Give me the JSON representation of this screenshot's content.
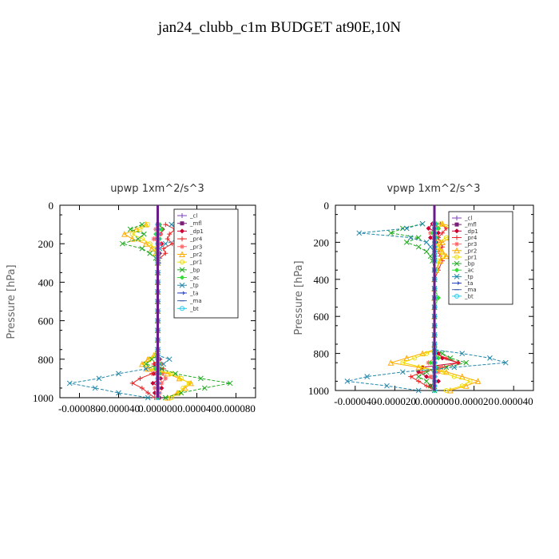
{
  "page": {
    "title": "jan24_clubb_c1m  BUDGET at90E,10N"
  },
  "chart_data": [
    {
      "type": "line",
      "title": "upwp   1xm^2/s^3",
      "ylabel": "Pressure  [hPa]",
      "xlabel": "",
      "xlim": [
        -0.0001,
        0.0001
      ],
      "ylim": [
        1000,
        0
      ],
      "x_ticks": [
        "-0.000080",
        "-0.000040",
        "0.000000",
        "0.000040",
        "0.000080"
      ],
      "x_tick_values": [
        -8e-05,
        -4e-05,
        0,
        4e-05,
        8e-05
      ],
      "y_ticks": [
        "0",
        "200",
        "400",
        "600",
        "800",
        "1000"
      ],
      "y_tick_values": [
        0,
        200,
        400,
        600,
        800,
        1000
      ],
      "legend": "top-right",
      "levels": [
        100,
        125,
        150,
        175,
        200,
        225,
        250,
        275,
        300,
        350,
        400,
        450,
        500,
        550,
        600,
        650,
        700,
        750,
        780,
        800,
        825,
        850,
        875,
        900,
        925,
        950,
        975,
        1000
      ],
      "series": [
        {
          "name": "_cl",
          "color": "#7f3fbf",
          "marker": "plus",
          "x": [
            0,
            0,
            0,
            0,
            0,
            0,
            0,
            0,
            0,
            0,
            0,
            0,
            0,
            0,
            0,
            0,
            0,
            0,
            0,
            0,
            0,
            0,
            0,
            0,
            0,
            0,
            0,
            0
          ]
        },
        {
          "name": "_mfl",
          "color": "#7b1f7b",
          "marker": "square",
          "x": [
            0,
            0,
            0,
            0,
            0,
            0,
            0,
            0,
            0,
            0,
            0,
            0,
            0,
            0,
            0,
            0,
            0,
            0,
            0,
            0,
            0,
            0,
            0,
            0,
            0,
            0,
            0,
            0
          ]
        },
        {
          "name": "_dp1",
          "color": "#cc0033",
          "marker": "diamond",
          "x": [
            2e-06,
            5e-06,
            3e-06,
            -2e-06,
            4e-06,
            -1e-06,
            2e-06,
            0,
            1e-06,
            0,
            0,
            0,
            0,
            0,
            0,
            0,
            0,
            0,
            0,
            2e-06,
            -3e-06,
            2e-06,
            -4e-06,
            3e-06,
            -5e-06,
            4e-06,
            -3e-06,
            2e-06
          ]
        },
        {
          "name": "_pr4",
          "color": "#ee2222",
          "marker": "plus",
          "x": [
            8e-06,
            1.8e-05,
            1.2e-05,
            1e-05,
            1.5e-05,
            6e-06,
            8e-06,
            2e-06,
            1e-06,
            0,
            0,
            0,
            0,
            0,
            0,
            0,
            0,
            0,
            0,
            2e-06,
            -4e-06,
            6e-06,
            -6e-06,
            -1.8e-05,
            -2.6e-05,
            -1.6e-05,
            -1e-05,
            -3e-06
          ]
        },
        {
          "name": "_pr3",
          "color": "#ff6666",
          "marker": "star",
          "x": [
            0,
            -2e-06,
            3e-06,
            -4e-06,
            2e-06,
            0,
            0,
            0,
            0,
            0,
            0,
            0,
            0,
            0,
            0,
            0,
            0,
            0,
            0,
            0,
            4e-06,
            -3e-06,
            5e-06,
            8e-06,
            4e-06,
            -3e-06,
            2e-06,
            0
          ]
        },
        {
          "name": "_pr2",
          "color": "#ffaa00",
          "marker": "triangle",
          "x": [
            -1.2e-05,
            -2.2e-05,
            -3.4e-05,
            -2.6e-05,
            -1.2e-05,
            -6e-06,
            -2e-06,
            0,
            0,
            0,
            0,
            0,
            0,
            0,
            0,
            0,
            0,
            0,
            -4e-06,
            -1e-05,
            -1.6e-05,
            -1e-05,
            1e-05,
            2.2e-05,
            3.4e-05,
            2.8e-05,
            2e-05,
            1e-05
          ]
        },
        {
          "name": "_pr1",
          "color": "#eedd00",
          "marker": "circle",
          "x": [
            -1e-05,
            -1.8e-05,
            -2.6e-05,
            -1.6e-05,
            -8e-06,
            -3e-06,
            -1e-06,
            0,
            0,
            0,
            0,
            0,
            0,
            0,
            0,
            0,
            0,
            0,
            -3e-06,
            -8e-06,
            -1.2e-05,
            -6e-06,
            1.4e-05,
            2.4e-05,
            3.2e-05,
            2.6e-05,
            2.2e-05,
            1.4e-05
          ]
        },
        {
          "name": "_bp",
          "color": "#22aa22",
          "marker": "x",
          "x": [
            -1.6e-05,
            -2.8e-05,
            -1.4e-05,
            -2e-05,
            -3.6e-05,
            -1.6e-05,
            -8e-06,
            -2e-06,
            0,
            0,
            0,
            0,
            0,
            0,
            0,
            0,
            0,
            0,
            0,
            -6e-06,
            -1.2e-05,
            4e-06,
            1.8e-05,
            4.4e-05,
            7.4e-05,
            4.8e-05,
            2.4e-05,
            8e-06
          ]
        },
        {
          "name": "_ac",
          "color": "#33dd33",
          "marker": "diamond",
          "x": [
            2e-06,
            4e-06,
            -2e-06,
            2e-06,
            0,
            0,
            0,
            0,
            0,
            0,
            0,
            0,
            0,
            0,
            0,
            0,
            0,
            0,
            0,
            0,
            2e-06,
            -2e-06,
            2e-06,
            0,
            0,
            0,
            0,
            0
          ]
        },
        {
          "name": "_tp",
          "color": "#2288aa",
          "marker": "x",
          "x": [
            1.4e-05,
            2.8e-05,
            4.2e-05,
            2.2e-05,
            8e-06,
            2e-06,
            0,
            0,
            0,
            0,
            0,
            0,
            0,
            0,
            0,
            0,
            0,
            0,
            0,
            1.2e-05,
            6e-06,
            -1.2e-05,
            -4e-05,
            -6e-05,
            -9e-05,
            -6.4e-05,
            -4e-05,
            -1e-05
          ]
        },
        {
          "name": "_ta",
          "color": "#2244cc",
          "marker": "arrow",
          "x": [
            0,
            0,
            0,
            0,
            0,
            0,
            0,
            0,
            0,
            0,
            0,
            0,
            0,
            0,
            0,
            0,
            0,
            0,
            0,
            0,
            0,
            0,
            0,
            0,
            0,
            0,
            0,
            0
          ]
        },
        {
          "name": "_ma",
          "color": "#4466aa",
          "marker": "dash",
          "x": [
            0,
            0,
            0,
            0,
            0,
            0,
            0,
            0,
            0,
            0,
            0,
            0,
            0,
            0,
            0,
            0,
            0,
            0,
            0,
            0,
            0,
            0,
            0,
            0,
            0,
            0,
            0,
            0
          ]
        },
        {
          "name": "_bt",
          "color": "#22ccee",
          "marker": "circle",
          "x": [
            0,
            0,
            0,
            0,
            0,
            0,
            0,
            0,
            0,
            0,
            0,
            0,
            0,
            0,
            0,
            0,
            0,
            0,
            0,
            0,
            0,
            0,
            0,
            0,
            0,
            0,
            0,
            0
          ]
        }
      ]
    },
    {
      "type": "line",
      "title": "vpwp   1xm^2/s^3",
      "ylabel": "Pressure  [hPa]",
      "xlabel": "",
      "xlim": [
        -5e-05,
        5e-05
      ],
      "ylim": [
        1000,
        0
      ],
      "x_ticks": [
        "-0.000040",
        "-0.000020",
        "0.000000",
        "0.000020",
        "0.000040"
      ],
      "x_tick_values": [
        -4e-05,
        -2e-05,
        0,
        2e-05,
        4e-05
      ],
      "y_ticks": [
        "0",
        "200",
        "400",
        "600",
        "800",
        "1000"
      ],
      "y_tick_values": [
        0,
        200,
        400,
        600,
        800,
        1000
      ],
      "legend": "top-right",
      "levels": [
        100,
        125,
        150,
        175,
        200,
        225,
        250,
        275,
        300,
        350,
        400,
        450,
        500,
        550,
        600,
        650,
        700,
        750,
        780,
        800,
        825,
        850,
        875,
        900,
        925,
        950,
        975,
        1000
      ],
      "series": [
        {
          "name": "_cl",
          "color": "#7f3fbf",
          "marker": "plus",
          "x": [
            0,
            0,
            0,
            0,
            0,
            0,
            0,
            0,
            0,
            0,
            0,
            0,
            0,
            0,
            0,
            0,
            0,
            0,
            0,
            0,
            0,
            0,
            0,
            0,
            0,
            0,
            0,
            0
          ]
        },
        {
          "name": "_mfl",
          "color": "#7b1f7b",
          "marker": "square",
          "x": [
            0,
            0,
            0,
            0,
            0,
            0,
            0,
            0,
            0,
            0,
            0,
            0,
            0,
            0,
            0,
            0,
            0,
            0,
            0,
            0,
            0,
            0,
            0,
            0,
            0,
            0,
            0,
            0
          ]
        },
        {
          "name": "_dp1",
          "color": "#cc0033",
          "marker": "diamond",
          "x": [
            -1e-06,
            -3e-06,
            2e-06,
            -2e-06,
            1e-06,
            0,
            0,
            0,
            0,
            0,
            0,
            0,
            0,
            0,
            0,
            0,
            0,
            0,
            0,
            2e-06,
            4e-06,
            1.2e-05,
            -6e-06,
            -8e-06,
            -4e-06,
            2e-06,
            -2e-06,
            0
          ]
        },
        {
          "name": "_pr4",
          "color": "#ee2222",
          "marker": "plus",
          "x": [
            3e-06,
            6e-06,
            4e-06,
            2e-06,
            3e-06,
            4e-06,
            2e-06,
            3e-06,
            4e-06,
            2e-06,
            0,
            0,
            0,
            0,
            0,
            0,
            0,
            0,
            0,
            0,
            6e-06,
            1.2e-05,
            4e-06,
            -6e-06,
            -1.2e-05,
            -8e-06,
            -4e-06,
            0
          ]
        },
        {
          "name": "_pr3",
          "color": "#ff6666",
          "marker": "star",
          "x": [
            0,
            2e-06,
            -2e-06,
            1e-06,
            0,
            0,
            0,
            0,
            0,
            0,
            0,
            0,
            0,
            0,
            0,
            0,
            0,
            0,
            0,
            0,
            0,
            -3e-06,
            3e-06,
            2e-06,
            -2e-06,
            0,
            0,
            0
          ]
        },
        {
          "name": "_pr2",
          "color": "#ffaa00",
          "marker": "triangle",
          "x": [
            4e-06,
            1.2e-05,
            1.8e-05,
            8e-06,
            4e-06,
            2e-06,
            4e-06,
            6e-06,
            3e-06,
            1e-06,
            0,
            0,
            0,
            0,
            0,
            0,
            0,
            0,
            0,
            -6e-06,
            -1.4e-05,
            -2.2e-05,
            -8e-06,
            6e-06,
            1.4e-05,
            2.2e-05,
            1.6e-05,
            8e-06
          ]
        },
        {
          "name": "_pr1",
          "color": "#eedd00",
          "marker": "circle",
          "x": [
            3e-06,
            8e-06,
            1.4e-05,
            6e-06,
            2e-06,
            2e-06,
            3e-06,
            4e-06,
            2e-06,
            1e-06,
            0,
            0,
            0,
            0,
            0,
            0,
            0,
            0,
            0,
            -4e-06,
            -1e-05,
            -1.6e-05,
            -6e-06,
            4e-06,
            1e-05,
            1.8e-05,
            1.4e-05,
            6e-06
          ]
        },
        {
          "name": "_bp",
          "color": "#22aa22",
          "marker": "x",
          "x": [
            -6e-06,
            -1.6e-05,
            -2.2e-05,
            -8e-06,
            -1.4e-05,
            -8e-06,
            -4e-06,
            -2e-06,
            -1e-06,
            0,
            0,
            0,
            0,
            0,
            0,
            0,
            0,
            0,
            0,
            4e-06,
            8e-06,
            1.6e-05,
            6e-06,
            -4e-06,
            -8e-06,
            -4e-06,
            -2e-06,
            0
          ]
        },
        {
          "name": "_ac",
          "color": "#33dd33",
          "marker": "diamond",
          "x": [
            1e-06,
            2e-06,
            -1e-06,
            1e-06,
            0,
            0,
            0,
            0,
            0,
            0,
            0,
            0,
            2e-06,
            0,
            0,
            0,
            0,
            0,
            0,
            0,
            2e-06,
            -2e-06,
            1e-06,
            0,
            0,
            0,
            0,
            0
          ]
        },
        {
          "name": "_tp",
          "color": "#2288aa",
          "marker": "x",
          "x": [
            -6e-06,
            -1.4e-05,
            -3.8e-05,
            -1.2e-05,
            -4e-06,
            -2e-06,
            0,
            0,
            0,
            0,
            0,
            0,
            0,
            0,
            0,
            0,
            0,
            0,
            0,
            1.4e-05,
            2.8e-05,
            3.6e-05,
            1e-05,
            -1.6e-05,
            -3.4e-05,
            -4.4e-05,
            -2.4e-05,
            -8e-06
          ]
        },
        {
          "name": "_ta",
          "color": "#2244cc",
          "marker": "arrow",
          "x": [
            0,
            0,
            0,
            0,
            0,
            0,
            0,
            0,
            0,
            0,
            0,
            0,
            0,
            0,
            0,
            0,
            0,
            0,
            0,
            0,
            0,
            0,
            0,
            0,
            0,
            0,
            0,
            0
          ]
        },
        {
          "name": "_ma",
          "color": "#4466aa",
          "marker": "dash",
          "x": [
            0,
            0,
            0,
            0,
            0,
            0,
            0,
            0,
            0,
            0,
            0,
            0,
            0,
            0,
            0,
            0,
            0,
            0,
            0,
            0,
            0,
            0,
            0,
            0,
            0,
            0,
            0,
            0
          ]
        },
        {
          "name": "_bt",
          "color": "#22ccee",
          "marker": "circle",
          "x": [
            0,
            0,
            0,
            0,
            0,
            0,
            0,
            0,
            0,
            0,
            0,
            0,
            0,
            0,
            0,
            0,
            0,
            0,
            0,
            0,
            0,
            0,
            0,
            0,
            0,
            0,
            0,
            0
          ]
        }
      ]
    }
  ]
}
